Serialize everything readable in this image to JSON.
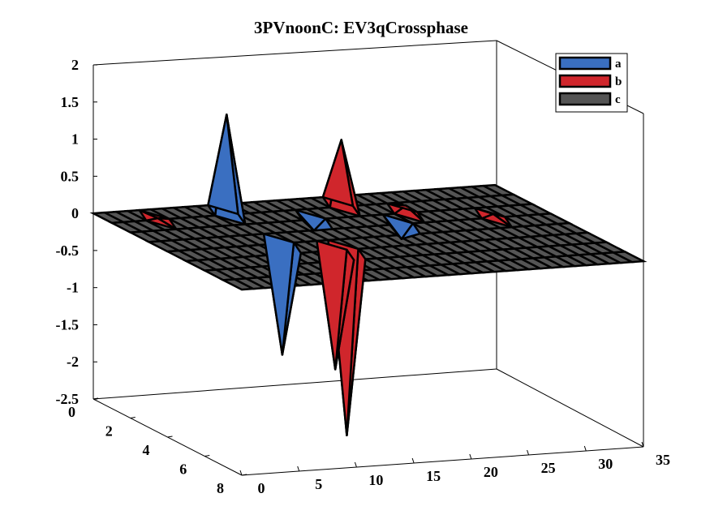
{
  "chart_data": {
    "type": "surface3d",
    "title": "3PVnoonC: EV3qCrossphase",
    "xlabel": "",
    "ylabel": "",
    "zlabel": "",
    "xlim": [
      0,
      35
    ],
    "ylim": [
      0,
      8
    ],
    "zlim": [
      -2.5,
      2
    ],
    "x_ticks": [
      "0",
      "5",
      "10",
      "15",
      "20",
      "25",
      "30",
      "35"
    ],
    "y_ticks": [
      "0",
      "2",
      "4",
      "6",
      "8"
    ],
    "z_ticks": [
      "2",
      "1.5",
      "1",
      "0.5",
      "0",
      "-0.5",
      "-1",
      "-1.5",
      "-2",
      "-2.5"
    ],
    "legend_position": "top-right",
    "series": [
      {
        "name": "a",
        "color": "#3a6fc1",
        "peaks": [
          {
            "x": 10,
            "y": 1,
            "z": 1.35
          },
          {
            "x": 10,
            "y": 4,
            "z": -1.5
          },
          {
            "x": 16,
            "y": 2,
            "z": -0.15
          },
          {
            "x": 22,
            "y": 3,
            "z": -0.2
          }
        ]
      },
      {
        "name": "b",
        "color": "#d0262c",
        "peaks": [
          {
            "x": 20,
            "y": 1,
            "z": 0.9
          },
          {
            "x": 14,
            "y": 5,
            "z": -2.5
          },
          {
            "x": 13,
            "y": 5,
            "z": -1.6
          },
          {
            "x": 24,
            "y": 2,
            "z": 0.1
          },
          {
            "x": 30,
            "y": 3,
            "z": 0.05
          },
          {
            "x": 4,
            "y": 1,
            "z": 0.02
          }
        ]
      },
      {
        "name": "c",
        "color": "#555555",
        "peaks": []
      }
    ],
    "grid": false
  }
}
